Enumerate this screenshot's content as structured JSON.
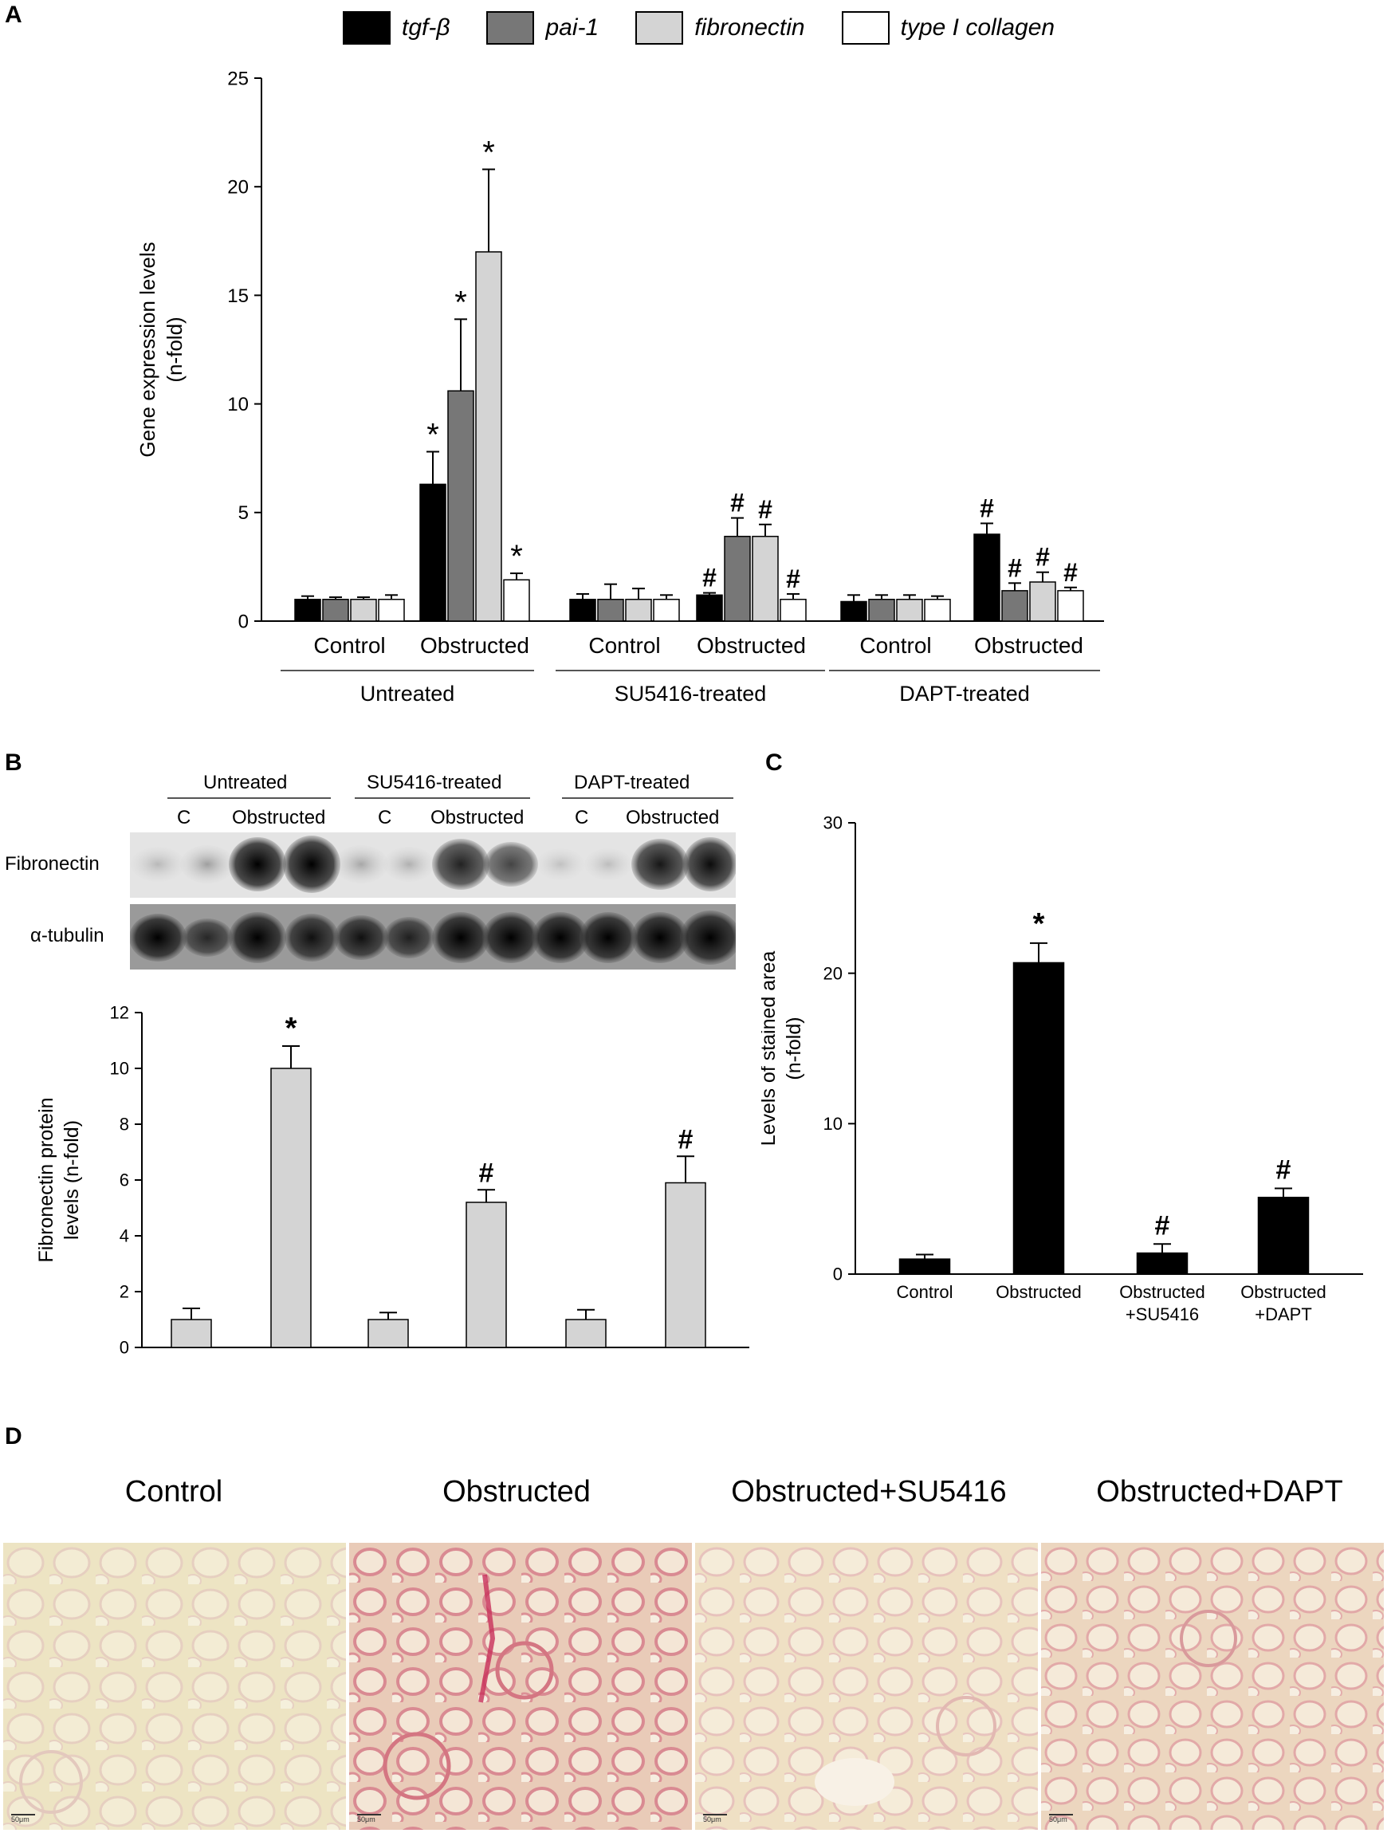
{
  "panels": {
    "a": "A",
    "b": "B",
    "c": "C",
    "d": "D"
  },
  "legend": [
    {
      "label": "tgf-β",
      "color": "#000000"
    },
    {
      "label": "pai-1",
      "color": "#777777"
    },
    {
      "label": "fibronectin",
      "color": "#d4d4d4"
    },
    {
      "label": "type I collagen",
      "color": "#ffffff"
    }
  ],
  "blot": {
    "groups": [
      "Untreated",
      "SU5416-treated",
      "DAPT-treated"
    ],
    "subs": [
      [
        "C",
        "Obstructed"
      ],
      [
        "C",
        "Obstructed"
      ],
      [
        "C",
        "Obstructed"
      ]
    ],
    "rows": [
      "Fibronectin",
      "α-tubulin"
    ]
  },
  "micrographs": {
    "titles": [
      "Control",
      "Obstructed",
      "Obstructed+SU5416",
      "Obstructed+DAPT"
    ],
    "scale_label": "50μm"
  },
  "chart_data": [
    {
      "id": "A",
      "type": "bar",
      "ylabel": "Gene expression levels (n-fold)",
      "ylim": [
        0,
        25
      ],
      "yticks": [
        0,
        5,
        10,
        15,
        20,
        25
      ],
      "groups": [
        "Untreated",
        "SU5416-treated",
        "DAPT-treated"
      ],
      "categories": [
        "Control",
        "Obstructed",
        "Control",
        "Obstructed",
        "Control",
        "Obstructed"
      ],
      "series": [
        {
          "name": "tgf-β",
          "values": [
            1.0,
            6.3,
            1.0,
            1.2,
            0.9,
            4.0
          ],
          "errors": [
            0.15,
            1.5,
            0.25,
            0.1,
            0.3,
            0.5
          ],
          "marks": [
            "",
            "*",
            "",
            "#",
            "",
            "#"
          ]
        },
        {
          "name": "pai-1",
          "values": [
            1.0,
            10.6,
            1.0,
            3.9,
            1.0,
            1.4
          ],
          "errors": [
            0.1,
            3.3,
            0.7,
            0.85,
            0.2,
            0.35
          ],
          "marks": [
            "",
            "*",
            "",
            "#",
            "",
            "#"
          ]
        },
        {
          "name": "fibronectin",
          "values": [
            1.0,
            17.0,
            1.0,
            3.9,
            1.0,
            1.8
          ],
          "errors": [
            0.1,
            3.8,
            0.5,
            0.55,
            0.2,
            0.45
          ],
          "marks": [
            "",
            "*",
            "",
            "#",
            "",
            "#"
          ]
        },
        {
          "name": "type I collagen",
          "values": [
            1.0,
            1.9,
            1.0,
            1.0,
            1.0,
            1.4
          ],
          "errors": [
            0.2,
            0.3,
            0.2,
            0.25,
            0.15,
            0.15
          ],
          "marks": [
            "",
            "*",
            "",
            "#",
            "",
            "#"
          ]
        }
      ]
    },
    {
      "id": "B",
      "type": "bar",
      "ylabel": "Fibronectin protein levels (n-fold)",
      "ylim": [
        0,
        12
      ],
      "yticks": [
        0,
        2,
        4,
        6,
        8,
        10,
        12
      ],
      "values": [
        1.0,
        10.0,
        1.0,
        5.2,
        1.0,
        5.9
      ],
      "errors": [
        0.4,
        0.8,
        0.25,
        0.45,
        0.35,
        0.95
      ],
      "marks": [
        "",
        "*",
        "",
        "#",
        "",
        "#"
      ]
    },
    {
      "id": "C",
      "type": "bar",
      "ylabel": "Levels of stained area (n-fold)",
      "ylim": [
        0,
        30
      ],
      "yticks": [
        0,
        10,
        20,
        30
      ],
      "categories": [
        "Control",
        "Obstructed",
        "Obstructed +SU5416",
        "Obstructed +DAPT"
      ],
      "values": [
        1.0,
        20.7,
        1.4,
        5.1
      ],
      "errors": [
        0.3,
        1.3,
        0.6,
        0.6
      ],
      "marks": [
        "",
        "*",
        "#",
        "#"
      ]
    }
  ]
}
